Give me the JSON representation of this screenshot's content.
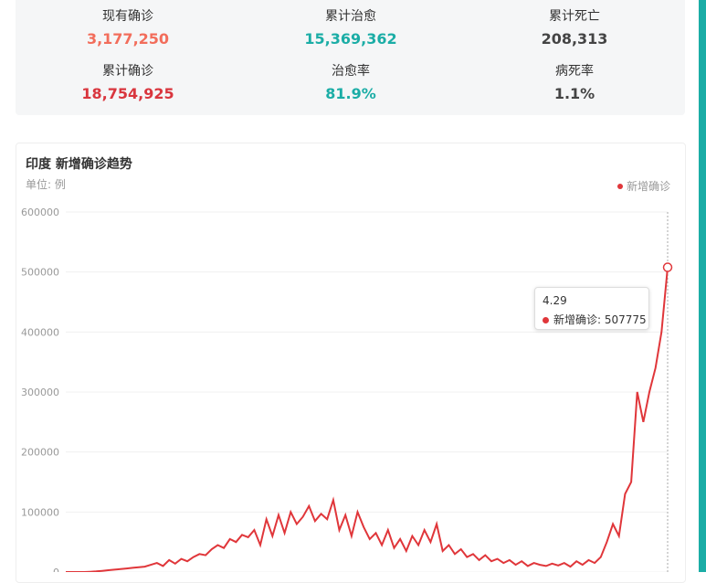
{
  "stats": [
    {
      "label": "现有确诊",
      "value": "3,177,250",
      "color": "#f26d5b"
    },
    {
      "label": "累计治愈",
      "value": "15,369,362",
      "color": "#1bada6"
    },
    {
      "label": "累计死亡",
      "value": "208,313",
      "color": "#444444"
    },
    {
      "label": "累计确诊",
      "value": "18,754,925",
      "color": "#d9363e"
    },
    {
      "label": "治愈率",
      "value": "81.9%",
      "color": "#1bada6"
    },
    {
      "label": "病死率",
      "value": "1.1%",
      "color": "#444444"
    }
  ],
  "chart_data": {
    "type": "line",
    "title": "印度 新增确诊趋势",
    "subtitle": "单位: 例",
    "series": [
      {
        "name": "新增确诊",
        "color": "#e0363a",
        "values": [
          0,
          0,
          0,
          0,
          500,
          1000,
          2000,
          3000,
          4000,
          5000,
          6000,
          7000,
          8000,
          9000,
          12000,
          15000,
          10000,
          20000,
          14000,
          22000,
          18000,
          25000,
          30000,
          28000,
          38000,
          45000,
          40000,
          55000,
          50000,
          62000,
          58000,
          70000,
          45000,
          88000,
          60000,
          95000,
          65000,
          100000,
          80000,
          92000,
          110000,
          85000,
          97000,
          88000,
          120000,
          70000,
          95000,
          60000,
          100000,
          75000,
          55000,
          65000,
          45000,
          70000,
          40000,
          55000,
          35000,
          60000,
          45000,
          70000,
          50000,
          80000,
          35000,
          45000,
          30000,
          38000,
          25000,
          30000,
          20000,
          28000,
          18000,
          22000,
          15000,
          20000,
          12000,
          18000,
          10000,
          15000,
          12000,
          10000,
          14000,
          11000,
          15000,
          9000,
          18000,
          12000,
          20000,
          15000,
          25000,
          50000,
          80000,
          60000,
          130000,
          150000,
          300000,
          250000,
          300000,
          340000,
          400000,
          507775
        ]
      }
    ],
    "ylim": [
      0,
      600000
    ],
    "yticks": [
      0,
      100000,
      200000,
      300000,
      400000,
      500000,
      600000
    ],
    "grid": true,
    "legend": "top-right",
    "tooltip": {
      "category": "4.29"
    }
  }
}
